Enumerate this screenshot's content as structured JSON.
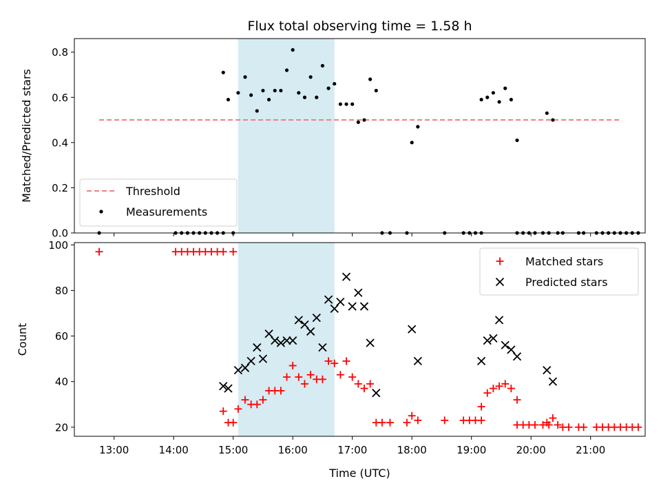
{
  "chart_data": [
    {
      "type": "scatter",
      "title": "Flux total observing time = 1.58 h",
      "xlabel": "",
      "ylabel": "Matched/Predicted stars",
      "xlim": [
        "12:20",
        "21:55"
      ],
      "ylim": [
        0,
        0.86
      ],
      "yticks": [
        0,
        0.2,
        0.4,
        0.6,
        0.8
      ],
      "ytick_labels": [
        "0.0",
        "0.2",
        "0.4",
        "0.6",
        "0.8"
      ],
      "legend": "bottom-left",
      "highlight_span": [
        "15:05",
        "16:42"
      ],
      "threshold": {
        "name": "Threshold",
        "y": 0.5,
        "x_range": [
          "12:45",
          "21:30"
        ],
        "color": "#f08080"
      },
      "series": [
        {
          "name": "Measurements",
          "color": "#000000",
          "points": [
            [
              "12:45",
              0.0
            ],
            [
              "14:02",
              0.0
            ],
            [
              "14:08",
              0.0
            ],
            [
              "14:14",
              0.0
            ],
            [
              "14:20",
              0.0
            ],
            [
              "14:26",
              0.0
            ],
            [
              "14:32",
              0.0
            ],
            [
              "14:38",
              0.0
            ],
            [
              "14:44",
              0.0
            ],
            [
              "14:50",
              0.0
            ],
            [
              "15:00",
              0.0
            ],
            [
              "14:50",
              0.71
            ],
            [
              "14:55",
              0.59
            ],
            [
              "15:05",
              0.62
            ],
            [
              "15:12",
              0.69
            ],
            [
              "15:18",
              0.61
            ],
            [
              "15:24",
              0.54
            ],
            [
              "15:30",
              0.63
            ],
            [
              "15:36",
              0.59
            ],
            [
              "15:42",
              0.63
            ],
            [
              "15:48",
              0.63
            ],
            [
              "15:54",
              0.72
            ],
            [
              "16:00",
              0.81
            ],
            [
              "16:06",
              0.62
            ],
            [
              "16:12",
              0.6
            ],
            [
              "16:18",
              0.69
            ],
            [
              "16:24",
              0.6
            ],
            [
              "16:30",
              0.74
            ],
            [
              "16:36",
              0.64
            ],
            [
              "16:42",
              0.66
            ],
            [
              "16:48",
              0.57
            ],
            [
              "16:54",
              0.57
            ],
            [
              "17:00",
              0.57
            ],
            [
              "17:06",
              0.49
            ],
            [
              "17:12",
              0.5
            ],
            [
              "17:18",
              0.68
            ],
            [
              "17:24",
              0.63
            ],
            [
              "17:30",
              0.0
            ],
            [
              "17:38",
              0.0
            ],
            [
              "17:55",
              0.0
            ],
            [
              "18:00",
              0.4
            ],
            [
              "18:06",
              0.47
            ],
            [
              "18:33",
              0.0
            ],
            [
              "18:52",
              0.0
            ],
            [
              "18:58",
              0.0
            ],
            [
              "19:04",
              0.0
            ],
            [
              "19:10",
              0.0
            ],
            [
              "19:10",
              0.59
            ],
            [
              "19:16",
              0.6
            ],
            [
              "19:22",
              0.62
            ],
            [
              "19:28",
              0.58
            ],
            [
              "19:34",
              0.64
            ],
            [
              "19:40",
              0.59
            ],
            [
              "19:46",
              0.41
            ],
            [
              "19:46",
              0.0
            ],
            [
              "19:52",
              0.0
            ],
            [
              "19:58",
              0.0
            ],
            [
              "20:04",
              0.0
            ],
            [
              "20:12",
              0.0
            ],
            [
              "20:18",
              0.0
            ],
            [
              "20:16",
              0.53
            ],
            [
              "20:22",
              0.5
            ],
            [
              "20:27",
              0.0
            ],
            [
              "20:32",
              0.0
            ],
            [
              "20:48",
              0.0
            ],
            [
              "20:53",
              0.0
            ],
            [
              "21:06",
              0.0
            ],
            [
              "21:12",
              0.0
            ],
            [
              "21:18",
              0.0
            ],
            [
              "21:24",
              0.0
            ],
            [
              "21:30",
              0.0
            ],
            [
              "21:36",
              0.0
            ],
            [
              "21:42",
              0.0
            ],
            [
              "21:48",
              0.0
            ]
          ]
        }
      ]
    },
    {
      "type": "scatter",
      "title": "",
      "xlabel": "Time (UTC)",
      "ylabel": "Count",
      "xlim": [
        "12:20",
        "21:55"
      ],
      "ylim": [
        16,
        101
      ],
      "yticks": [
        20,
        40,
        60,
        80,
        100
      ],
      "ytick_labels": [
        "20",
        "40",
        "60",
        "80",
        "100"
      ],
      "xticks": [
        "13:00",
        "14:00",
        "15:00",
        "16:00",
        "17:00",
        "18:00",
        "19:00",
        "20:00",
        "21:00"
      ],
      "legend": "top-right",
      "highlight_span": [
        "15:05",
        "16:42"
      ],
      "series": [
        {
          "name": "Matched stars",
          "color": "#ff0000",
          "marker": "plus",
          "points": [
            [
              "12:45",
              97
            ],
            [
              "14:02",
              97
            ],
            [
              "14:08",
              97
            ],
            [
              "14:14",
              97
            ],
            [
              "14:20",
              97
            ],
            [
              "14:26",
              97
            ],
            [
              "14:32",
              97
            ],
            [
              "14:38",
              97
            ],
            [
              "14:44",
              97
            ],
            [
              "14:50",
              97
            ],
            [
              "15:00",
              97
            ],
            [
              "14:50",
              27
            ],
            [
              "14:55",
              22
            ],
            [
              "15:00",
              22
            ],
            [
              "15:05",
              28
            ],
            [
              "15:12",
              32
            ],
            [
              "15:18",
              30
            ],
            [
              "15:24",
              30
            ],
            [
              "15:30",
              32
            ],
            [
              "15:36",
              36
            ],
            [
              "15:42",
              36
            ],
            [
              "15:48",
              36
            ],
            [
              "15:54",
              42
            ],
            [
              "16:00",
              47
            ],
            [
              "16:06",
              42
            ],
            [
              "16:12",
              39
            ],
            [
              "16:18",
              43
            ],
            [
              "16:24",
              41
            ],
            [
              "16:30",
              41
            ],
            [
              "16:36",
              49
            ],
            [
              "16:42",
              48
            ],
            [
              "16:48",
              43
            ],
            [
              "16:54",
              49
            ],
            [
              "17:00",
              42
            ],
            [
              "17:06",
              39
            ],
            [
              "17:12",
              37
            ],
            [
              "17:18",
              39
            ],
            [
              "17:24",
              22
            ],
            [
              "17:30",
              22
            ],
            [
              "17:38",
              22
            ],
            [
              "17:55",
              22
            ],
            [
              "18:00",
              25
            ],
            [
              "18:06",
              23
            ],
            [
              "18:33",
              23
            ],
            [
              "18:52",
              23
            ],
            [
              "18:58",
              23
            ],
            [
              "19:04",
              23
            ],
            [
              "19:10",
              23
            ],
            [
              "19:10",
              29
            ],
            [
              "19:16",
              35
            ],
            [
              "19:22",
              37
            ],
            [
              "19:28",
              38
            ],
            [
              "19:34",
              39
            ],
            [
              "19:40",
              37
            ],
            [
              "19:46",
              32
            ],
            [
              "19:46",
              21
            ],
            [
              "19:52",
              21
            ],
            [
              "19:58",
              21
            ],
            [
              "20:04",
              21
            ],
            [
              "20:12",
              21
            ],
            [
              "20:18",
              21
            ],
            [
              "20:16",
              22
            ],
            [
              "20:22",
              24
            ],
            [
              "20:27",
              21
            ],
            [
              "20:32",
              20
            ],
            [
              "20:38",
              20
            ],
            [
              "20:48",
              20
            ],
            [
              "20:53",
              20
            ],
            [
              "21:06",
              20
            ],
            [
              "21:12",
              20
            ],
            [
              "21:18",
              20
            ],
            [
              "21:24",
              20
            ],
            [
              "21:30",
              20
            ],
            [
              "21:36",
              20
            ],
            [
              "21:42",
              20
            ],
            [
              "21:48",
              20
            ]
          ]
        },
        {
          "name": "Predicted stars",
          "color": "#000000",
          "marker": "x",
          "points": [
            [
              "14:50",
              38
            ],
            [
              "14:55",
              37
            ],
            [
              "15:05",
              45
            ],
            [
              "15:12",
              46
            ],
            [
              "15:18",
              49
            ],
            [
              "15:24",
              55
            ],
            [
              "15:30",
              50
            ],
            [
              "15:36",
              61
            ],
            [
              "15:42",
              58
            ],
            [
              "15:48",
              57
            ],
            [
              "15:54",
              58
            ],
            [
              "16:00",
              58
            ],
            [
              "16:06",
              67
            ],
            [
              "16:12",
              65
            ],
            [
              "16:18",
              62
            ],
            [
              "16:24",
              68
            ],
            [
              "16:30",
              55
            ],
            [
              "16:36",
              76
            ],
            [
              "16:42",
              72
            ],
            [
              "16:48",
              75
            ],
            [
              "16:54",
              86
            ],
            [
              "17:00",
              73
            ],
            [
              "17:06",
              79
            ],
            [
              "17:12",
              73
            ],
            [
              "17:18",
              57
            ],
            [
              "17:24",
              35
            ],
            [
              "18:00",
              63
            ],
            [
              "18:06",
              49
            ],
            [
              "19:10",
              49
            ],
            [
              "19:16",
              58
            ],
            [
              "19:22",
              59
            ],
            [
              "19:28",
              67
            ],
            [
              "19:34",
              56
            ],
            [
              "19:40",
              54
            ],
            [
              "19:46",
              51
            ],
            [
              "20:16",
              45
            ],
            [
              "20:22",
              40
            ]
          ]
        }
      ]
    }
  ]
}
